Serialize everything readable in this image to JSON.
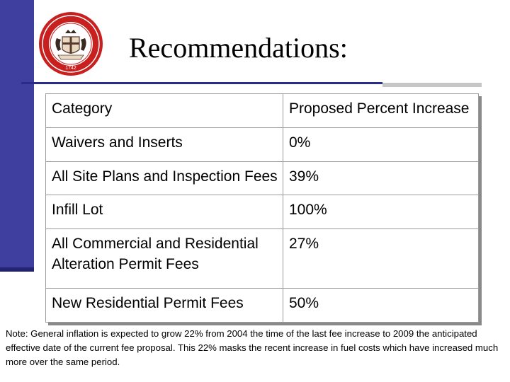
{
  "slide": {
    "title": "Recommendations:",
    "seal": {
      "icon": "county-seal-icon",
      "ring_color": "#c81f1f",
      "year": "1742"
    }
  },
  "table": {
    "headers": [
      "Category",
      "Proposed Percent Increase"
    ],
    "rows": [
      {
        "category": "Waivers and Inserts",
        "increase": "0%"
      },
      {
        "category": "All Site Plans and Inspection Fees",
        "increase": "39%"
      },
      {
        "category": "Infill Lot",
        "increase": "100%"
      },
      {
        "category": "All Commercial and Residential Alteration Permit Fees",
        "increase": "27%"
      },
      {
        "category": "New Residential Permit Fees",
        "increase": "50%"
      }
    ]
  },
  "note": "Note:  General inflation is expected to grow 22% from 2004 the time of the last fee increase to 2009 the anticipated effective date of the current fee proposal.  This 22% masks the recent increase in fuel costs which have increased much more over the same period.",
  "colors": {
    "accent_bar": "#3f3fa0",
    "rule": "#2b2b8a",
    "seal_red": "#c81f1f"
  }
}
